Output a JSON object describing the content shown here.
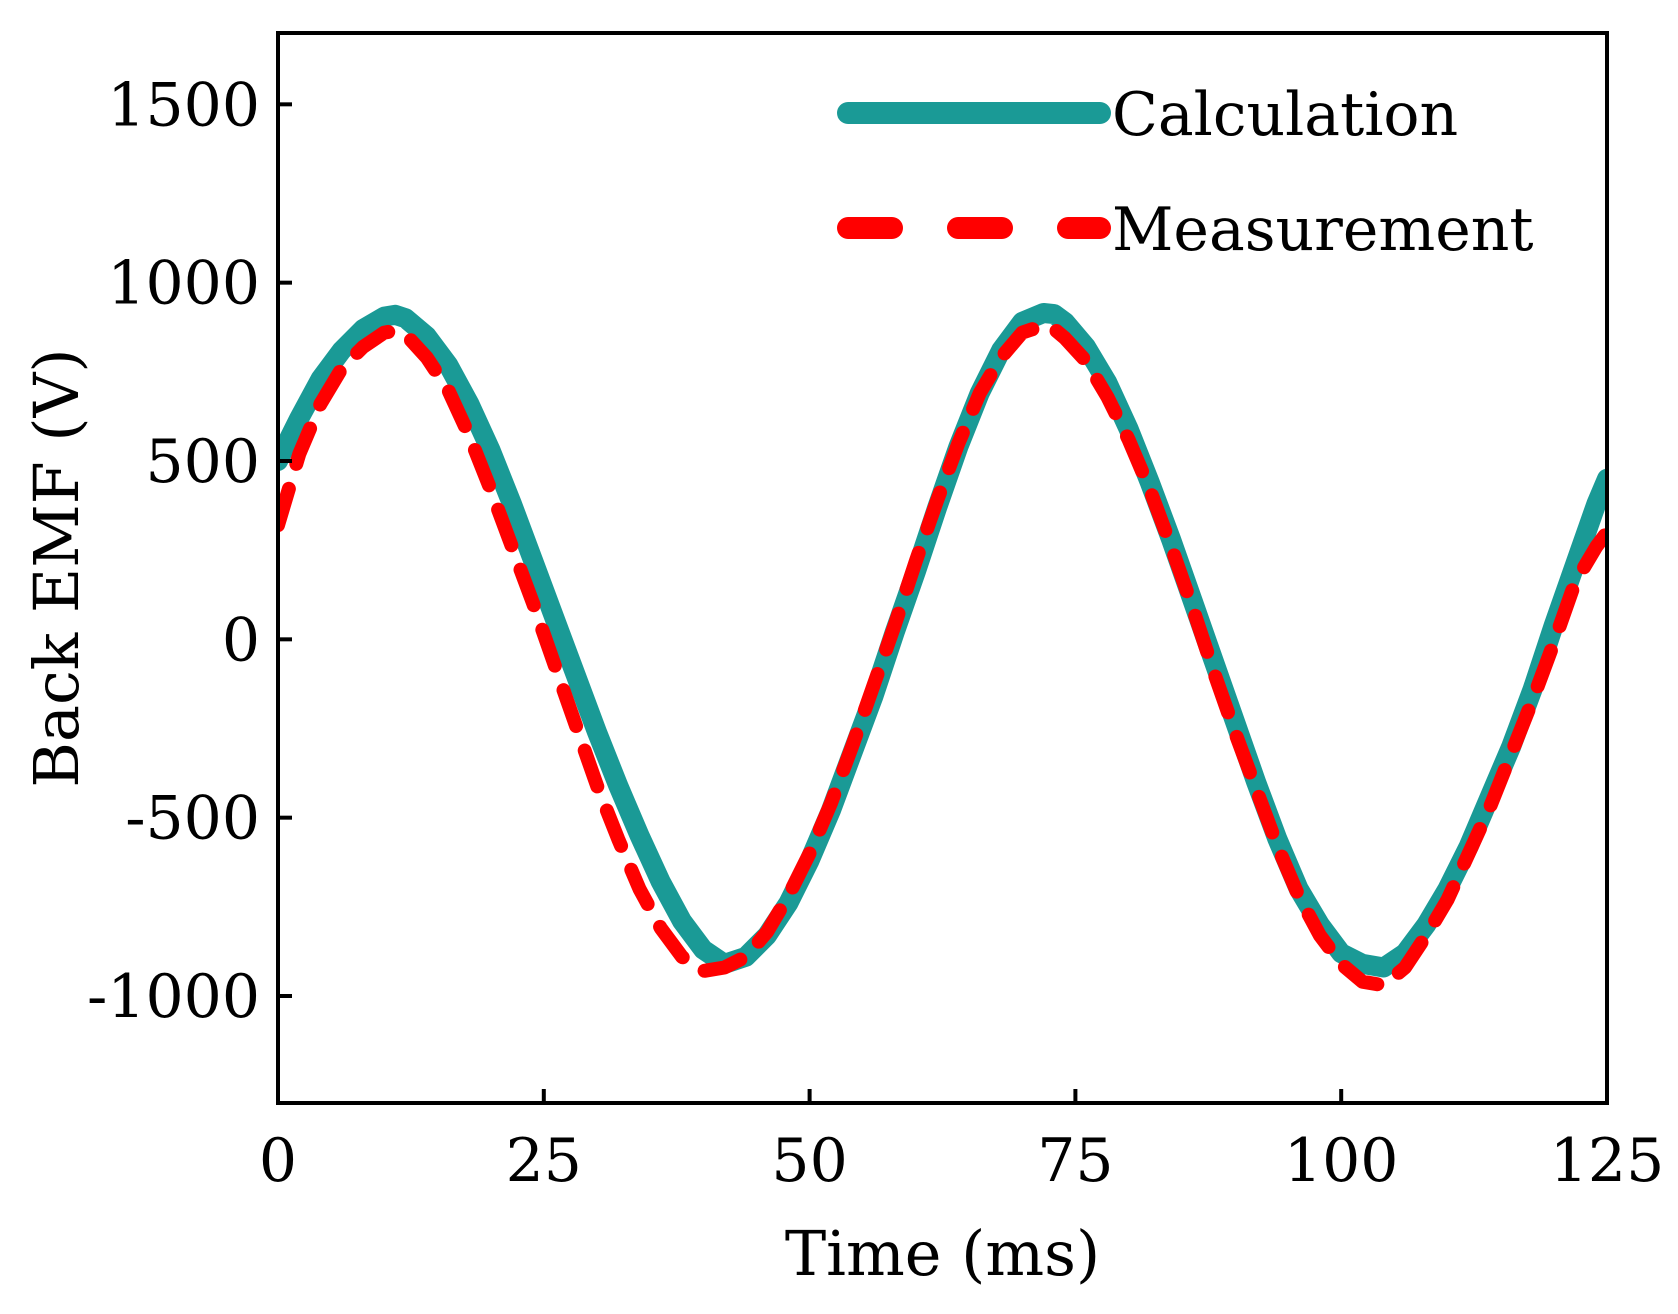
{
  "chart_data": {
    "type": "line",
    "title": "",
    "xlabel": "Time (ms)",
    "ylabel": "Back EMF (V)",
    "xlim": [
      0,
      125
    ],
    "ylim": [
      -1300,
      1700
    ],
    "x_ticks": [
      0,
      25,
      50,
      75,
      100,
      125
    ],
    "x_tick_labels": [
      "0",
      "25",
      "50",
      "75",
      "100",
      "125"
    ],
    "y_ticks": [
      -1000,
      -500,
      0,
      500,
      1000,
      1500
    ],
    "y_tick_labels": [
      "-1000",
      "-500",
      "0",
      "500",
      "1000",
      "1500"
    ],
    "grid": false,
    "legend_position": "top-right",
    "series": [
      {
        "name": "Calculation",
        "color": "#1a9a96",
        "style": "solid",
        "x": [
          0,
          2,
          4,
          6,
          8,
          10,
          11,
          12,
          14,
          16,
          18,
          20,
          22,
          24,
          26,
          28,
          30,
          32,
          34,
          36,
          38,
          40,
          42,
          44,
          46,
          48,
          50,
          52,
          54,
          56,
          58,
          60,
          62,
          64,
          66,
          68,
          70,
          72,
          73,
          74,
          76,
          78,
          80,
          82,
          84,
          86,
          88,
          90,
          92,
          94,
          96,
          98,
          100,
          102,
          104,
          106,
          108,
          110,
          112,
          114,
          116,
          118,
          120,
          122,
          124,
          125
        ],
        "y": [
          500,
          620,
          730,
          810,
          870,
          905,
          910,
          900,
          850,
          770,
          660,
          530,
          380,
          220,
          60,
          -100,
          -260,
          -410,
          -550,
          -680,
          -790,
          -870,
          -910,
          -890,
          -830,
          -740,
          -620,
          -480,
          -320,
          -160,
          20,
          190,
          370,
          540,
          690,
          810,
          890,
          915,
          912,
          890,
          820,
          720,
          590,
          440,
          280,
          110,
          -60,
          -230,
          -400,
          -560,
          -700,
          -800,
          -880,
          -910,
          -920,
          -880,
          -800,
          -700,
          -580,
          -440,
          -300,
          -140,
          40,
          210,
          380,
          450
        ]
      },
      {
        "name": "Measurement",
        "color": "#ff0000",
        "style": "dashed",
        "x": [
          0,
          2,
          4,
          6,
          8,
          10,
          11,
          12,
          14,
          16,
          18,
          20,
          22,
          24,
          26,
          28,
          30,
          32,
          34,
          36,
          38,
          40,
          42,
          44,
          46,
          48,
          50,
          52,
          54,
          56,
          58,
          60,
          62,
          64,
          66,
          68,
          70,
          72,
          73,
          74,
          76,
          78,
          80,
          82,
          84,
          86,
          88,
          90,
          92,
          94,
          96,
          98,
          100,
          102,
          104,
          106,
          108,
          110,
          112,
          114,
          116,
          118,
          120,
          122,
          124,
          125
        ],
        "y": [
          320,
          520,
          660,
          760,
          820,
          860,
          865,
          855,
          790,
          700,
          570,
          420,
          260,
          100,
          -70,
          -240,
          -410,
          -560,
          -700,
          -810,
          -890,
          -930,
          -920,
          -890,
          -820,
          -720,
          -600,
          -460,
          -300,
          -130,
          40,
          220,
          390,
          550,
          690,
          790,
          860,
          880,
          870,
          845,
          780,
          680,
          560,
          420,
          260,
          90,
          -90,
          -260,
          -420,
          -580,
          -720,
          -830,
          -910,
          -960,
          -970,
          -920,
          -830,
          -730,
          -600,
          -470,
          -320,
          -170,
          -10,
          160,
          260,
          300
        ]
      }
    ]
  }
}
